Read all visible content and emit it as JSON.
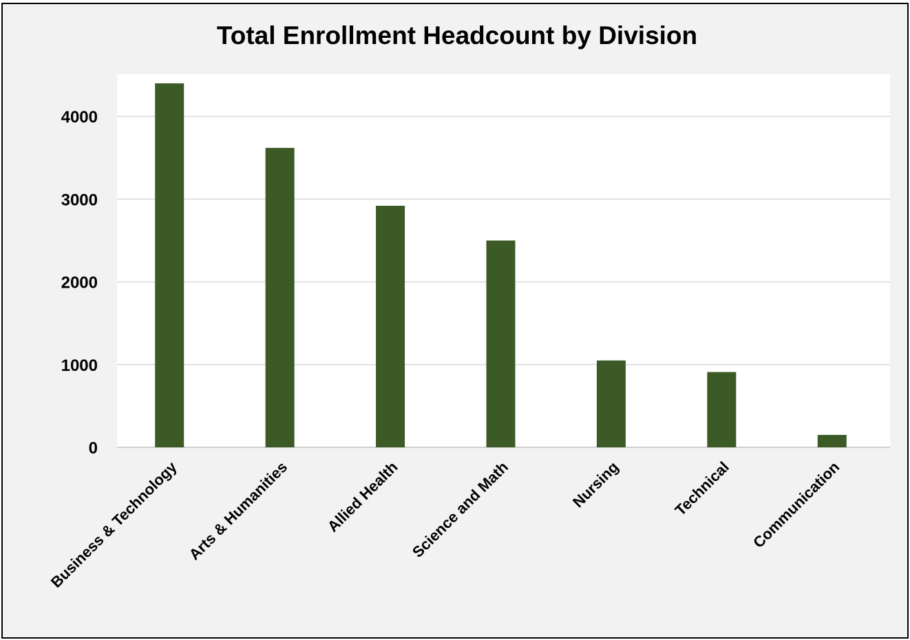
{
  "chart_data": {
    "type": "bar",
    "title": "Total Enrollment Headcount by Division",
    "xlabel": "",
    "ylabel": "",
    "categories": [
      "Business & Technology",
      "Arts & Humanities",
      "Allied Health",
      "Science and Math",
      "Nursing",
      "Technical",
      "Communication"
    ],
    "values": [
      4400,
      3620,
      2920,
      2500,
      1050,
      910,
      150
    ],
    "ylim": [
      0,
      4500
    ],
    "yticks": [
      0,
      1000,
      2000,
      3000,
      4000
    ],
    "ytick_labels": [
      "0",
      "1000",
      "2000",
      "3000",
      "4000"
    ],
    "grid": true,
    "legend": "none",
    "colors": {
      "bar": "#3b5a25",
      "plot_background": "#ffffff",
      "chart_background": "#f2f2f2",
      "gridline": "#d9d9d9",
      "border": "#000000"
    }
  }
}
